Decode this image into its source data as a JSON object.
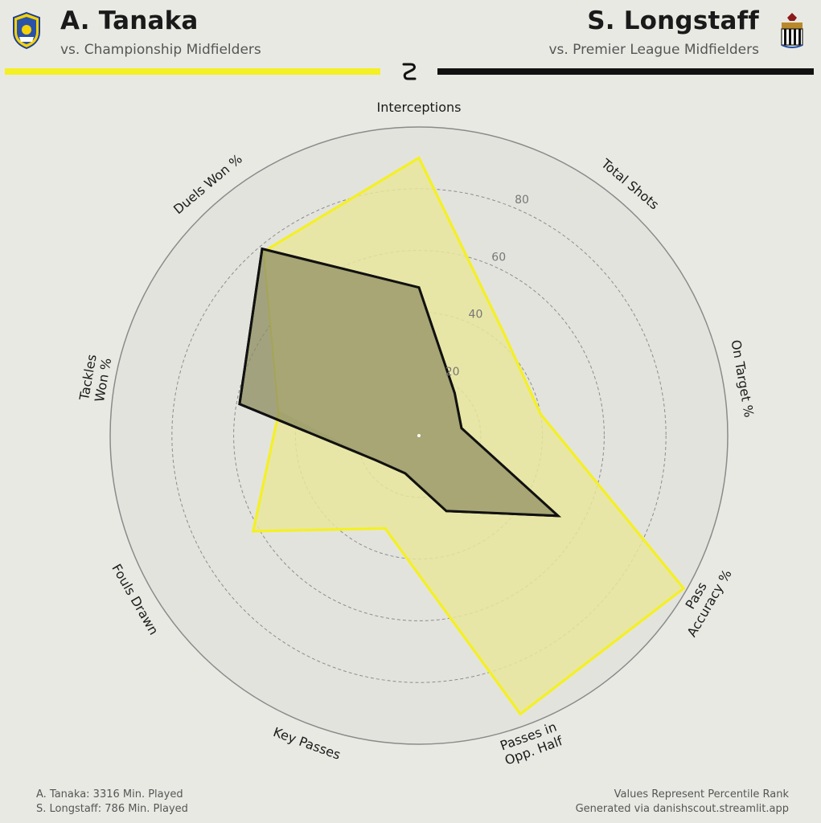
{
  "header": {
    "left_player": "A. Tanaka",
    "left_subtitle": "vs. Championship Midfielders",
    "right_player": "S. Longstaff",
    "right_subtitle": "vs. Premier League Midfielders"
  },
  "colors": {
    "left_series": "#f4f024",
    "left_fill": "#e9e69c",
    "right_series": "#111111",
    "right_fill": "#8c8c5e",
    "background": "#e9e9e4"
  },
  "icons": {
    "left_crest": "leeds-united-crest-icon",
    "right_crest": "newcastle-united-crest-icon",
    "logo": "danishscout-logo-icon"
  },
  "chart_data": {
    "type": "radar",
    "categories": [
      [
        "Interceptions"
      ],
      [
        "Total Shots"
      ],
      [
        "On Target %"
      ],
      [
        "Pass",
        "Accuracy %"
      ],
      [
        "Passes in",
        "Opp. Half"
      ],
      [
        "Key Passes"
      ],
      [
        "Fouls Drawn"
      ],
      [
        "Tackles",
        "Won %"
      ],
      [
        "Duels Won %"
      ]
    ],
    "ticks": [
      "20",
      "40",
      "60",
      "80"
    ],
    "rlim": [
      0,
      100
    ],
    "series": [
      {
        "name": "A. Tanaka",
        "values": [
          90,
          43,
          40,
          99,
          96,
          32,
          62,
          46,
          78
        ]
      },
      {
        "name": "S. Longstaff",
        "values": [
          48,
          18,
          14,
          52,
          26,
          13,
          16,
          59,
          79
        ]
      }
    ],
    "grid": true
  },
  "footer": {
    "left_line1": "A. Tanaka: 3316 Min. Played",
    "left_line2": "S. Longstaff: 786 Min. Played",
    "right_line1": "Values Represent Percentile Rank",
    "right_line2": "Generated via danishscout.streamlit.app"
  }
}
